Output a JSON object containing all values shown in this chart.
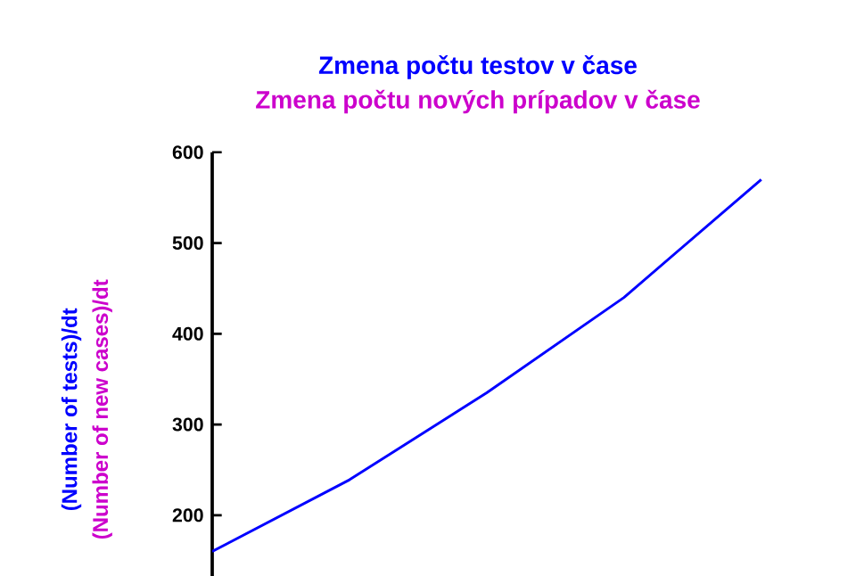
{
  "chart_data": {
    "type": "line",
    "title": "Zmena počtu testov v čase",
    "subtitle": "Zmena počtu nových prípadov v čase",
    "ylabel": "(Number of tests)/dt",
    "y2label": "(Number of new cases)/dt",
    "categories": [
      null,
      null,
      null,
      null,
      null
    ],
    "series": [
      {
        "color": "#0000ff",
        "values": [
          160,
          239,
          335,
          440,
          570
        ]
      }
    ],
    "ylim": [
      133,
      600
    ],
    "yticks": [
      200,
      300,
      400,
      500,
      600
    ],
    "tick_labels": "y",
    "grid": false,
    "marker": "none",
    "line_style": "solid"
  }
}
